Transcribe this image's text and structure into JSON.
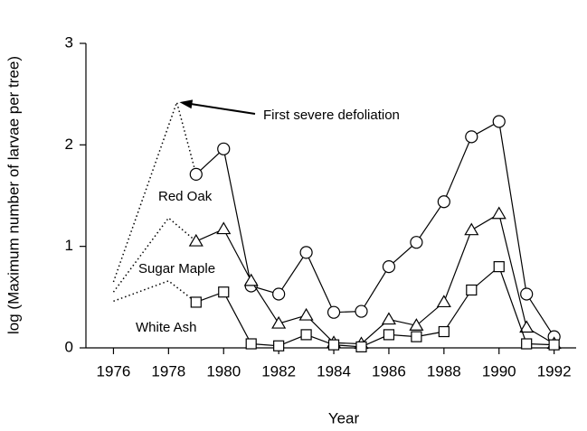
{
  "chart_data": {
    "type": "line",
    "xlabel": "Year",
    "ylabel": "log (Maximum number of larvae per tree)",
    "xlim": [
      1975,
      1992.8
    ],
    "xticks": [
      1976,
      1978,
      1980,
      1982,
      1984,
      1986,
      1988,
      1990,
      1992
    ],
    "ylim": [
      0,
      3
    ],
    "yticks": [
      0,
      1,
      2,
      3
    ],
    "x": [
      1979,
      1980,
      1981,
      1982,
      1983,
      1984,
      1985,
      1986,
      1987,
      1988,
      1989,
      1990,
      1991,
      1992
    ],
    "series": [
      {
        "name": "Red Oak",
        "marker": "circle",
        "color": "#000000",
        "values": [
          1.71,
          1.96,
          0.61,
          0.53,
          0.94,
          0.35,
          0.36,
          0.8,
          1.04,
          1.44,
          2.08,
          2.23,
          0.53,
          0.11
        ],
        "dotted_x": [
          1976,
          1978.3
        ],
        "dotted_values": [
          0.65,
          2.42
        ]
      },
      {
        "name": "Sugar Maple",
        "marker": "triangle",
        "color": "#000000",
        "values": [
          1.05,
          1.17,
          0.66,
          0.24,
          0.32,
          0.05,
          0.04,
          0.28,
          0.22,
          0.45,
          1.16,
          1.32,
          0.2,
          0.04
        ],
        "dotted_x": [
          1976,
          1978
        ],
        "dotted_values": [
          0.55,
          1.28
        ]
      },
      {
        "name": "White Ash",
        "marker": "square",
        "color": "#000000",
        "values": [
          0.45,
          0.55,
          0.04,
          0.02,
          0.13,
          0.03,
          0.01,
          0.13,
          0.11,
          0.16,
          0.57,
          0.8,
          0.04,
          0.03
        ],
        "dotted_x": [
          1976,
          1978
        ],
        "dotted_values": [
          0.46,
          0.66
        ]
      }
    ],
    "annotation": "First severe defoliation"
  }
}
